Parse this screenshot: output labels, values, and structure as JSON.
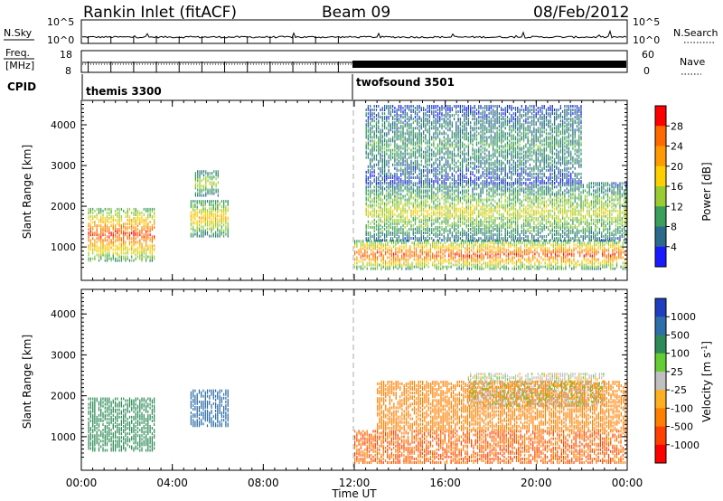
{
  "header": {
    "station": "Rankin Inlet (fitACF)",
    "beam": "Beam 09",
    "date": "08/Feb/2012"
  },
  "sky_panel": {
    "left_label": "N.Sky",
    "right_label": "N.Search",
    "right_ticks": [
      "10^5",
      "10^0"
    ],
    "left_ticks": [
      "10^5",
      "10^0"
    ]
  },
  "freq_panel": {
    "left_label_1": "Freq.",
    "left_label_2": "[MHz]",
    "left_ticks": [
      "18",
      "8"
    ],
    "right_label": "Nave",
    "right_ticks": [
      "60",
      "0"
    ]
  },
  "cpid": {
    "label": "CPID",
    "segments": [
      {
        "name": "themis 3300",
        "start_hour": 0
      },
      {
        "name": "twofsound 3501",
        "start_hour": 12
      }
    ]
  },
  "power_panel": {
    "ylabel": "Slant Range [km]",
    "yticks": [
      "4000",
      "3000",
      "2000",
      "1000"
    ],
    "cbar_label": "Power [dB]",
    "cbar_ticks": [
      "28",
      "24",
      "20",
      "16",
      "12",
      "8",
      "4"
    ],
    "cbar_colors": [
      "#ff0000",
      "#ff6a00",
      "#ff9a00",
      "#ffd000",
      "#9acc32",
      "#3a9e5c",
      "#2b6a8c",
      "#1a1aff"
    ]
  },
  "velocity_panel": {
    "ylabel": "Slant Range [km]",
    "yticks": [
      "4000",
      "3000",
      "2000",
      "1000"
    ],
    "cbar_label": "Velocity [m s^-1]",
    "cbar_ticks": [
      "1000",
      "500",
      "100",
      "25",
      "-25",
      "-100",
      "-500",
      "-1000"
    ],
    "cbar_colors": [
      "#1f3fbf",
      "#2f6ea8",
      "#2e8b57",
      "#66cc33",
      "#c0c0c0",
      "#ffb020",
      "#ff8000",
      "#ff4000",
      "#ff0000"
    ]
  },
  "xaxis": {
    "label": "Time UT",
    "ticks": [
      "00:00",
      "04:00",
      "08:00",
      "12:00",
      "16:00",
      "20:00",
      "00:00"
    ]
  },
  "chart_data": {
    "type": "heatmap",
    "title": "Rankin Inlet (fitACF)  Beam 09  08/Feb/2012",
    "xlabel": "Time UT",
    "ylabel": "Slant Range [km]",
    "xlim_hours": [
      0,
      24
    ],
    "ylim_km": [
      180,
      4600
    ],
    "power_colorbar_db": [
      4,
      8,
      12,
      16,
      20,
      24,
      28
    ],
    "velocity_colorbar_ms": [
      -1000,
      -500,
      -100,
      -25,
      25,
      100,
      500,
      1000
    ],
    "power_echo_regions": [
      {
        "t0": 0.3,
        "t1": 3.2,
        "r0": 700,
        "r1": 2000,
        "level_db": 26
      },
      {
        "t0": 4.8,
        "t1": 6.5,
        "r0": 1300,
        "r1": 2200,
        "level_db": 18
      },
      {
        "t0": 5.0,
        "t1": 6.0,
        "r0": 2300,
        "r1": 2900,
        "level_db": 14
      },
      {
        "t0": 12.0,
        "t1": 24.0,
        "r0": 500,
        "r1": 1200,
        "level_db": 26
      },
      {
        "t0": 12.5,
        "t1": 24.0,
        "r0": 1200,
        "r1": 2600,
        "level_db": 14
      },
      {
        "t0": 12.5,
        "t1": 22.0,
        "r0": 2600,
        "r1": 4500,
        "level_db": 8
      }
    ],
    "velocity_echo_regions": [
      {
        "t0": 0.3,
        "t1": 3.2,
        "r0": 700,
        "r1": 2000,
        "velocity_ms": 100
      },
      {
        "t0": 4.8,
        "t1": 6.5,
        "r0": 1300,
        "r1": 2200,
        "velocity_ms": 500
      },
      {
        "t0": 12.0,
        "t1": 24.0,
        "r0": 400,
        "r1": 1200,
        "velocity_ms": -300
      },
      {
        "t0": 13.0,
        "t1": 24.0,
        "r0": 1200,
        "r1": 2400,
        "velocity_ms": -100
      },
      {
        "t0": 17.0,
        "t1": 23.0,
        "r0": 1800,
        "r1": 2600,
        "velocity_ms": 0
      }
    ]
  }
}
